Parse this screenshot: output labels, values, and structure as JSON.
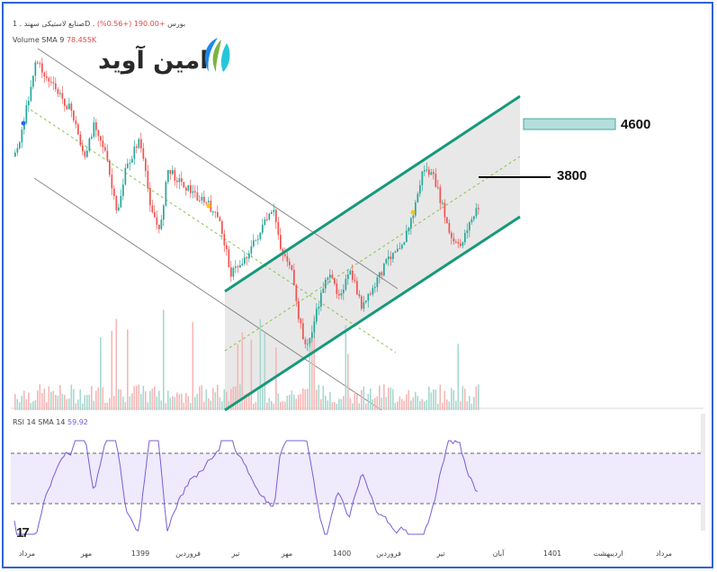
{
  "header": {
    "symbol": "صنایع لاستیکی سهند . 1D . بورس",
    "change": "+190.00 (+0.56%)",
    "volume_label": "Volume SMA 9",
    "volume_value": "78.455K",
    "rsi_label": "RSI 14 SMA 14",
    "rsi_value": "59.92"
  },
  "brand": {
    "name": "امین آوید",
    "colors": [
      "#1e88e5",
      "#7cb342",
      "#26c6da"
    ]
  },
  "levels": {
    "upper": "4600",
    "lower": "3800"
  },
  "x_axis_ticks": [
    "مرداد",
    "مهر",
    "1399",
    "فروردین",
    "تیر",
    "مهر",
    "1400",
    "فروردین",
    "تیر",
    "آبان",
    "1401",
    "اردیبهشت",
    "مرداد"
  ],
  "tv_logo": "17",
  "colors": {
    "up": "#26a69a",
    "down": "#ef5350",
    "channel": "#16997a",
    "rsi": "#7b5cd6",
    "frame": "#2f62d8"
  },
  "chart_data": {
    "type": "candlestick",
    "title": "صنایع لاستیکی سهند",
    "rsi": {
      "upper": 70,
      "lower": 30,
      "last": 59.92
    },
    "resistance_levels": [
      4600,
      3800
    ],
    "annotation_upper": "4600",
    "annotation_lower": "3800"
  }
}
